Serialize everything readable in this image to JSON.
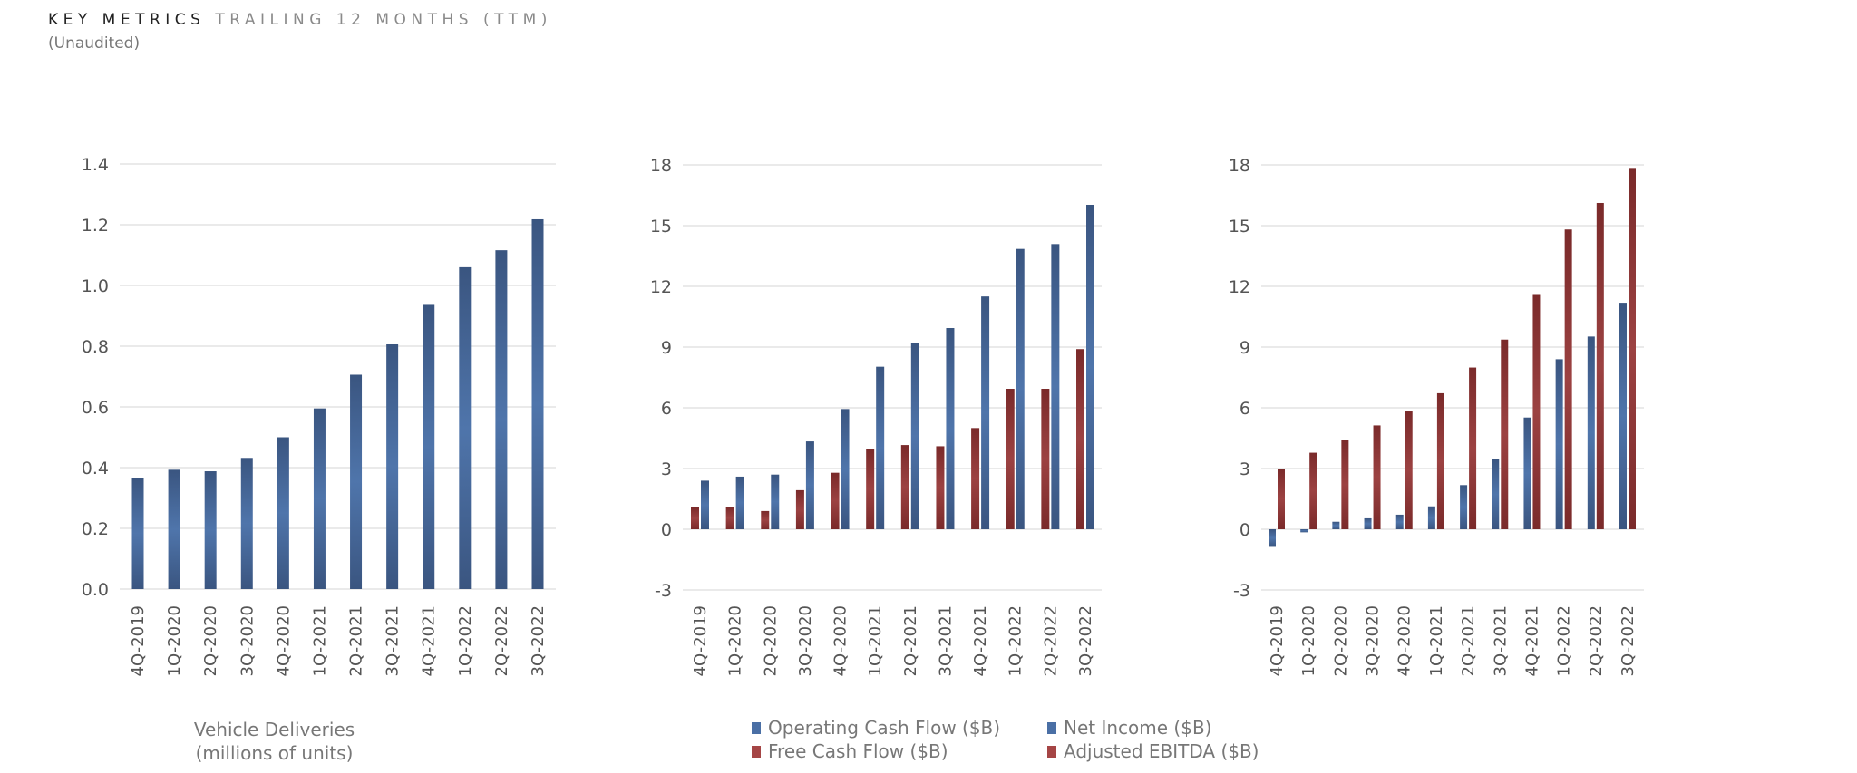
{
  "header": {
    "title_main": "KEY METRICS",
    "title_sub": "TRAILING 12 MONTHS (TTM)",
    "note": "(Unaudited)"
  },
  "colors": {
    "blue": "#4a6fa5",
    "blue_dark": "#3a5580",
    "red": "#9a3f3f",
    "red_dark": "#7a2a2a",
    "grid": "#e6e6e6"
  },
  "chart_data": [
    {
      "type": "bar",
      "categories": [
        "4Q-2019",
        "1Q-2020",
        "2Q-2020",
        "3Q-2020",
        "4Q-2020",
        "1Q-2021",
        "2Q-2021",
        "3Q-2021",
        "4Q-2021",
        "1Q-2022",
        "2Q-2022",
        "3Q-2022"
      ],
      "series": [
        {
          "name": "Vehicle Deliveries",
          "color": "blue",
          "values": [
            0.367,
            0.393,
            0.388,
            0.432,
            0.5,
            0.595,
            0.706,
            0.806,
            0.936,
            1.06,
            1.116,
            1.218
          ]
        }
      ],
      "yticks": [
        "0.0",
        "0.2",
        "0.4",
        "0.6",
        "0.8",
        "1.0",
        "1.2",
        "1.4"
      ],
      "ylim": [
        0,
        1.4
      ],
      "caption": [
        "Vehicle Deliveries",
        "(millions of units)"
      ],
      "legend": false,
      "grid": true
    },
    {
      "type": "bar",
      "categories": [
        "4Q-2019",
        "1Q-2020",
        "2Q-2020",
        "3Q-2020",
        "4Q-2020",
        "1Q-2021",
        "2Q-2021",
        "3Q-2021",
        "4Q-2021",
        "1Q-2022",
        "2Q-2022",
        "3Q-2022"
      ],
      "series": [
        {
          "name": "Free Cash Flow ($B)",
          "color": "red",
          "values": [
            1.08,
            1.1,
            0.9,
            1.93,
            2.79,
            3.97,
            4.16,
            4.1,
            5.0,
            6.94,
            6.94,
            8.9
          ]
        },
        {
          "name": "Operating Cash Flow ($B)",
          "color": "blue",
          "values": [
            2.4,
            2.6,
            2.7,
            4.34,
            5.94,
            8.03,
            9.18,
            9.94,
            11.5,
            13.85,
            14.09,
            16.03
          ]
        }
      ],
      "legend_order": [
        1,
        0
      ],
      "yticks": [
        "-3",
        "0",
        "3",
        "6",
        "9",
        "12",
        "15",
        "18"
      ],
      "ylim": [
        -3,
        18
      ],
      "legend": "bottom",
      "grid": true
    },
    {
      "type": "bar",
      "categories": [
        "4Q-2019",
        "1Q-2020",
        "2Q-2020",
        "3Q-2020",
        "4Q-2020",
        "1Q-2021",
        "2Q-2021",
        "3Q-2021",
        "4Q-2021",
        "1Q-2022",
        "2Q-2022",
        "3Q-2022"
      ],
      "series": [
        {
          "name": "Net Income ($B)",
          "color": "blue",
          "values": [
            -0.87,
            -0.15,
            0.37,
            0.54,
            0.72,
            1.13,
            2.18,
            3.46,
            5.52,
            8.4,
            9.52,
            11.19
          ]
        },
        {
          "name": "Adjusted EBITDA ($B)",
          "color": "red",
          "values": [
            2.99,
            3.78,
            4.42,
            5.13,
            5.82,
            6.72,
            7.99,
            9.37,
            11.62,
            14.81,
            16.12,
            17.85
          ]
        }
      ],
      "legend_order": [
        0,
        1
      ],
      "yticks": [
        "-3",
        "0",
        "3",
        "6",
        "9",
        "12",
        "15",
        "18"
      ],
      "ylim": [
        -3,
        18
      ],
      "legend": "bottom",
      "grid": true
    }
  ]
}
